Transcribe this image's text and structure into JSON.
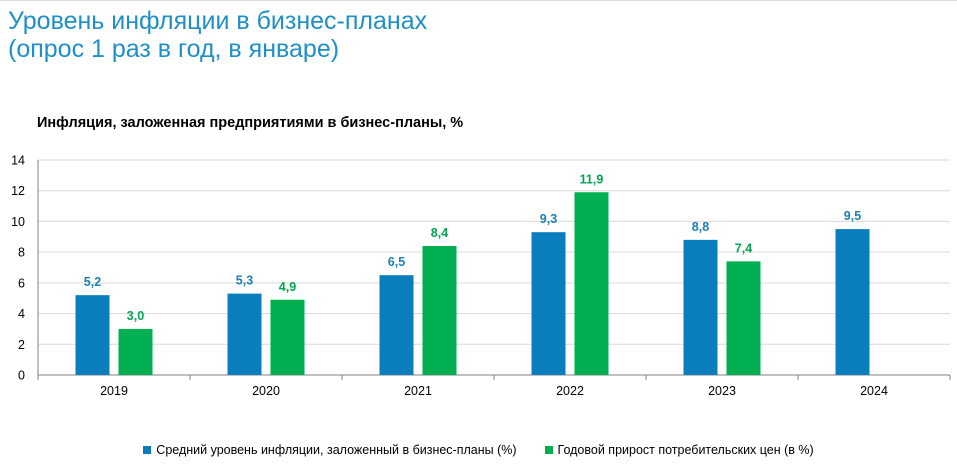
{
  "header": {
    "title_line1": "Уровень инфляции в бизнес-планах",
    "title_line2": "(опрос 1 раз в год, в январе)"
  },
  "colors": {
    "title": "#1f8fc8",
    "series1": "#0a7dbd",
    "series2": "#00b050",
    "axis": "#808080"
  },
  "chart_data": {
    "type": "bar",
    "title": "Инфляция, заложенная предприятиями в бизнес-планы, %",
    "categories": [
      "2019",
      "2020",
      "2021",
      "2022",
      "2023",
      "2024"
    ],
    "series": [
      {
        "name": "Средний уровень инфляции, заложенный в бизнес-планы (%)",
        "values": [
          5.2,
          5.3,
          6.5,
          9.3,
          8.8,
          9.5
        ],
        "labels": [
          "5,2",
          "5,3",
          "6,5",
          "9,3",
          "8,8",
          "9,5"
        ]
      },
      {
        "name": "Годовой прирост потребительских цен (в %)",
        "values": [
          3.0,
          4.9,
          8.4,
          11.9,
          7.4,
          null
        ],
        "labels": [
          "3,0",
          "4,9",
          "8,4",
          "11,9",
          "7,4",
          null
        ]
      }
    ],
    "yticks": [
      "0",
      "2",
      "4",
      "6",
      "8",
      "10",
      "12",
      "14"
    ],
    "ylim": [
      0,
      14
    ],
    "xlabel": "",
    "ylabel": "",
    "grid": true,
    "legend": "bottom"
  }
}
